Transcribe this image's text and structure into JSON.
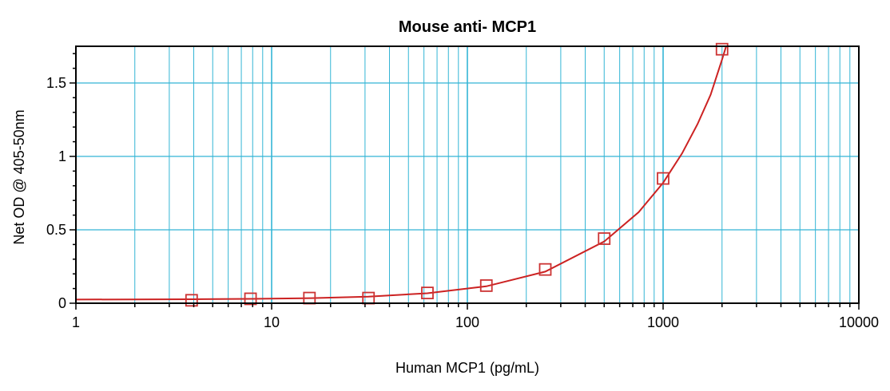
{
  "chart_data": {
    "type": "scatter",
    "title": "Mouse anti- MCP1",
    "xlabel": "Human MCP1 (pg/mL)",
    "ylabel": "Net OD @ 405-50nm",
    "x_scale": "log",
    "xlim": [
      1,
      10000
    ],
    "ylim": [
      0,
      1.75
    ],
    "x_ticks": [
      {
        "value": 1,
        "label": "1"
      },
      {
        "value": 10,
        "label": "10"
      },
      {
        "value": 100,
        "label": "100"
      },
      {
        "value": 1000,
        "label": "1000"
      },
      {
        "value": 10000,
        "label": "10000"
      }
    ],
    "y_ticks": [
      {
        "value": 0,
        "label": "0"
      },
      {
        "value": 0.5,
        "label": "0.5"
      },
      {
        "value": 1,
        "label": "1"
      },
      {
        "value": 1.5,
        "label": "1.5"
      }
    ],
    "grid": true,
    "legend": "none",
    "series": [
      {
        "marker": "open-square",
        "color": "#cc3333",
        "x": [
          3.9,
          7.8,
          15.6,
          31.25,
          62.5,
          125,
          250,
          500,
          1000,
          2000
        ],
        "y": [
          0.02,
          0.03,
          0.035,
          0.035,
          0.07,
          0.12,
          0.23,
          0.44,
          0.85,
          1.73
        ]
      }
    ],
    "fit_curve": {
      "color": "#cc2222",
      "x": [
        1,
        2,
        4,
        8,
        16,
        31.25,
        62.5,
        125,
        250,
        500,
        750,
        1000,
        1250,
        1500,
        1750,
        2000,
        2100
      ],
      "y": [
        0.025,
        0.026,
        0.027,
        0.03,
        0.035,
        0.045,
        0.068,
        0.115,
        0.215,
        0.42,
        0.62,
        0.82,
        1.02,
        1.22,
        1.42,
        1.66,
        1.76
      ]
    },
    "colors": {
      "grid": "#33b5d5",
      "frame": "#000000",
      "marker": "#cc3333",
      "curve": "#cc2222"
    }
  }
}
